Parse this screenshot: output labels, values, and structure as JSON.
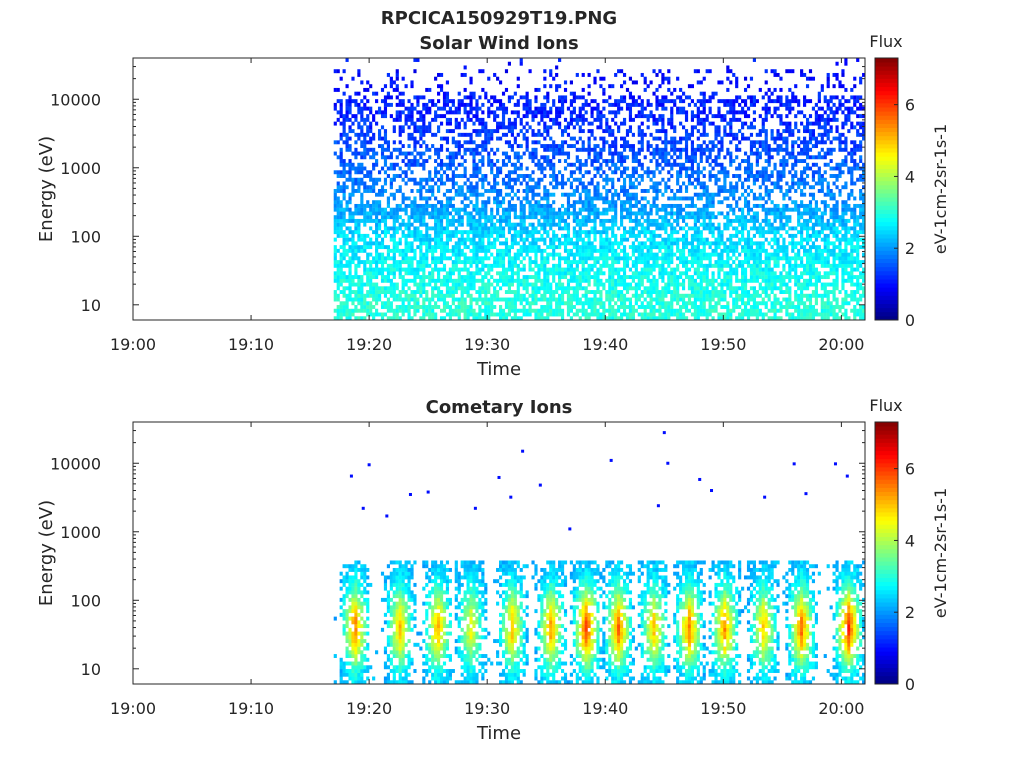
{
  "figure": {
    "title": "RPCICA150929T19.PNG"
  },
  "colors": {
    "axis": "#262626",
    "background": "#ffffff",
    "colormap": "jet"
  },
  "colorbar": {
    "label": "Flux",
    "unit_label": "eV-1cm-2sr-1s-1",
    "ticks": [
      "0",
      "2",
      "4",
      "6"
    ],
    "range": [
      0,
      7.3
    ]
  },
  "chart_data": [
    {
      "type": "heatmap",
      "title": "Solar Wind Ions",
      "xlabel": "Time",
      "ylabel": "Energy (eV)",
      "x_ticks": [
        "19:00",
        "19:10",
        "19:20",
        "19:30",
        "19:40",
        "19:50",
        "20:00"
      ],
      "xlim": [
        "19:00",
        "20:02"
      ],
      "y_ticks": [
        "10",
        "100",
        "1000",
        "10000"
      ],
      "yscale": "log",
      "ylim": [
        6,
        40000
      ],
      "data_start": "19:17",
      "data_end": "20:02",
      "description_of_values": "sparse low flux (~1-1.5) at 1-20 keV, rising to ~2.5-3 below 100 eV",
      "energy_bands": [
        {
          "energy_eV": 20000,
          "flux": 1.0
        },
        {
          "energy_eV": 5000,
          "flux": 1.2
        },
        {
          "energy_eV": 1000,
          "flux": 1.6
        },
        {
          "energy_eV": 300,
          "flux": 2.0
        },
        {
          "energy_eV": 100,
          "flux": 2.5
        },
        {
          "energy_eV": 30,
          "flux": 2.8
        },
        {
          "energy_eV": 10,
          "flux": 3.0
        }
      ]
    },
    {
      "type": "heatmap",
      "title": "Cometary Ions",
      "xlabel": "Time",
      "ylabel": "Energy (eV)",
      "x_ticks": [
        "19:00",
        "19:10",
        "19:20",
        "19:30",
        "19:40",
        "19:50",
        "20:00"
      ],
      "xlim": [
        "19:00",
        "20:02"
      ],
      "y_ticks": [
        "10",
        "100",
        "1000",
        "10000"
      ],
      "yscale": "log",
      "ylim": [
        6,
        40000
      ],
      "data_start": "19:17",
      "data_end": "20:02",
      "bursts": [
        {
          "time": "19:18.7",
          "peak_flux": 5.5
        },
        {
          "time": "19:22.5",
          "peak_flux": 5.0
        },
        {
          "time": "19:25.7",
          "peak_flux": 5.2
        },
        {
          "time": "19:28.5",
          "peak_flux": 4.5
        },
        {
          "time": "19:32.0",
          "peak_flux": 5.0
        },
        {
          "time": "19:35.3",
          "peak_flux": 5.3
        },
        {
          "time": "19:38.3",
          "peak_flux": 6.0
        },
        {
          "time": "19:41.0",
          "peak_flux": 5.6
        },
        {
          "time": "19:44.0",
          "peak_flux": 5.0
        },
        {
          "time": "19:47.0",
          "peak_flux": 5.5
        },
        {
          "time": "19:50.0",
          "peak_flux": 5.4
        },
        {
          "time": "19:53.3",
          "peak_flux": 5.0
        },
        {
          "time": "19:56.5",
          "peak_flux": 5.6
        },
        {
          "time": "20:00.5",
          "peak_flux": 6.0
        }
      ],
      "peak_energy_eV": 40,
      "max_energy_eV": 400,
      "scattered_points": [
        {
          "time": "19:18.5",
          "energy_eV": 6500
        },
        {
          "time": "19:20.0",
          "energy_eV": 9500
        },
        {
          "time": "19:19.5",
          "energy_eV": 2200
        },
        {
          "time": "19:23.5",
          "energy_eV": 3500
        },
        {
          "time": "19:25.0",
          "energy_eV": 3800
        },
        {
          "time": "19:33.0",
          "energy_eV": 15000
        },
        {
          "time": "19:31.0",
          "energy_eV": 6200
        },
        {
          "time": "19:34.5",
          "energy_eV": 4800
        },
        {
          "time": "19:32.0",
          "energy_eV": 3200
        },
        {
          "time": "19:40.5",
          "energy_eV": 11000
        },
        {
          "time": "19:45.0",
          "energy_eV": 28000
        },
        {
          "time": "19:45.3",
          "energy_eV": 10000
        },
        {
          "time": "19:44.5",
          "energy_eV": 2400
        },
        {
          "time": "19:48.0",
          "energy_eV": 5800
        },
        {
          "time": "19:49.0",
          "energy_eV": 4000
        },
        {
          "time": "19:53.5",
          "energy_eV": 3200
        },
        {
          "time": "19:56.0",
          "energy_eV": 9800
        },
        {
          "time": "19:59.5",
          "energy_eV": 9800
        },
        {
          "time": "20:00.5",
          "energy_eV": 6500
        },
        {
          "time": "19:57.0",
          "energy_eV": 3600
        },
        {
          "time": "19:29.0",
          "energy_eV": 2200
        },
        {
          "time": "19:37.0",
          "energy_eV": 1100
        },
        {
          "time": "19:21.5",
          "energy_eV": 1700
        }
      ]
    }
  ]
}
